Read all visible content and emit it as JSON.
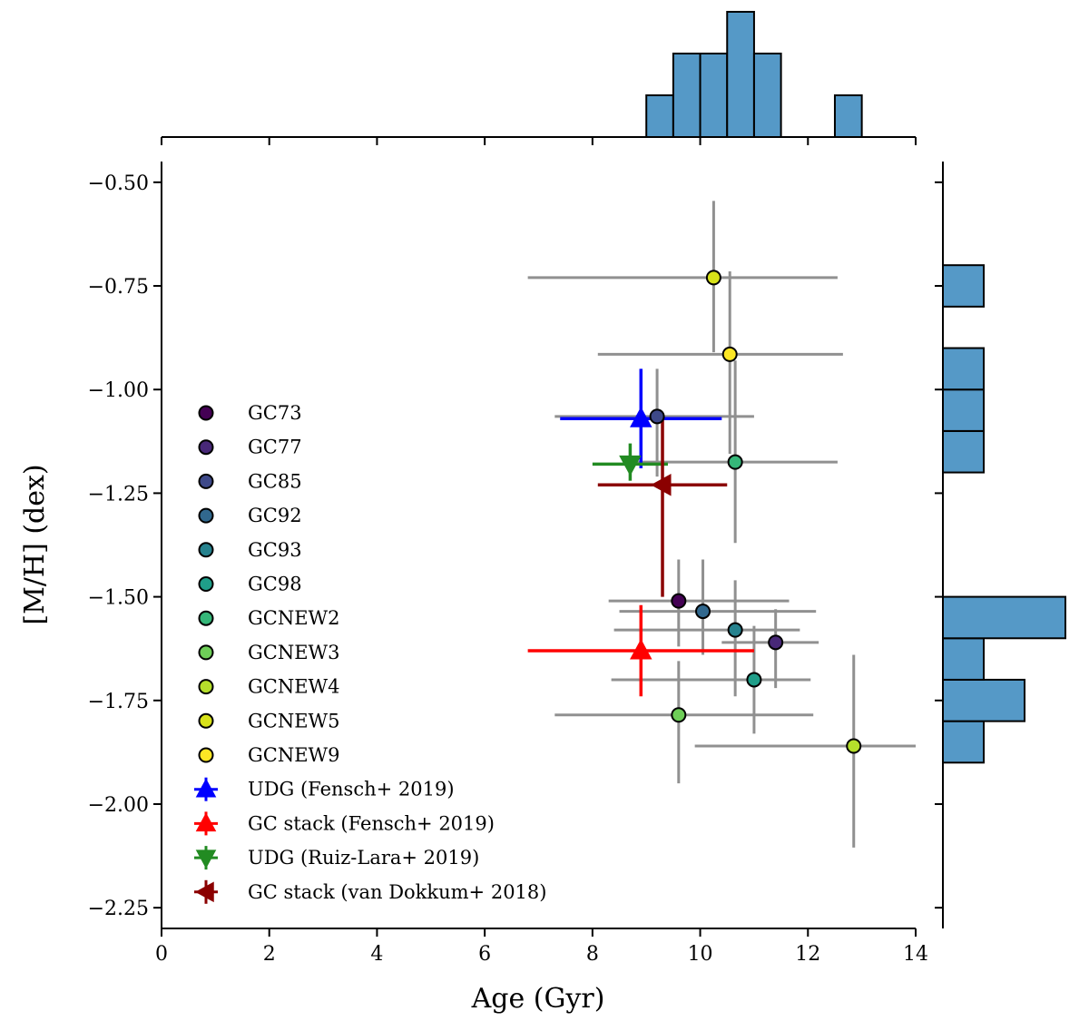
{
  "chart_data": {
    "type": "scatter",
    "xlabel": "Age (Gyr)",
    "ylabel": "[M/H] (dex)",
    "xlim": [
      0,
      14
    ],
    "ylim": [
      -2.3,
      -0.45
    ],
    "xticks": [
      0,
      2,
      4,
      6,
      8,
      10,
      12,
      14
    ],
    "xtick_labels": [
      "0",
      "2",
      "4",
      "6",
      "8",
      "10",
      "12",
      "14"
    ],
    "yticks": [
      -0.5,
      -0.75,
      -1.0,
      -1.25,
      -1.5,
      -1.75,
      -2.0,
      -2.25
    ],
    "ytick_labels": [
      "−0.50",
      "−0.75",
      "−1.00",
      "−1.25",
      "−1.50",
      "−1.75",
      "−2.00",
      "−2.25"
    ],
    "legend_position": "lower-left",
    "errorbar_color": "#909090",
    "gc_points": [
      {
        "name": "GC73",
        "color": "#440154",
        "age": 9.6,
        "age_lo": 8.3,
        "age_hi": 11.65,
        "mh": -1.51,
        "mh_lo": -1.62,
        "mh_hi": -1.41
      },
      {
        "name": "GC77",
        "color": "#482878",
        "age": 11.4,
        "age_lo": 10.4,
        "age_hi": 12.2,
        "mh": -1.61,
        "mh_lo": -1.72,
        "mh_hi": -1.53
      },
      {
        "name": "GC85",
        "color": "#3e4989",
        "age": 9.2,
        "age_lo": 7.3,
        "age_hi": 11.0,
        "mh": -1.065,
        "mh_lo": -1.21,
        "mh_hi": -0.95
      },
      {
        "name": "GC92",
        "color": "#31688e",
        "age": 10.05,
        "age_lo": 8.5,
        "age_hi": 12.15,
        "mh": -1.535,
        "mh_lo": -1.64,
        "mh_hi": -1.41
      },
      {
        "name": "GC93",
        "color": "#26828e",
        "age": 10.65,
        "age_lo": 8.4,
        "age_hi": 11.85,
        "mh": -1.58,
        "mh_lo": -1.74,
        "mh_hi": -1.46
      },
      {
        "name": "GC98",
        "color": "#1f9e89",
        "age": 11.0,
        "age_lo": 8.35,
        "age_hi": 12.05,
        "mh": -1.7,
        "mh_lo": -1.83,
        "mh_hi": -1.57
      },
      {
        "name": "GCNEW2",
        "color": "#35b779",
        "age": 10.65,
        "age_lo": 8.75,
        "age_hi": 12.55,
        "mh": -1.175,
        "mh_lo": -1.37,
        "mh_hi": -0.93
      },
      {
        "name": "GCNEW3",
        "color": "#6ece58",
        "age": 9.6,
        "age_lo": 7.3,
        "age_hi": 12.1,
        "mh": -1.785,
        "mh_lo": -1.95,
        "mh_hi": -1.655
      },
      {
        "name": "GCNEW4",
        "color": "#b5de2b",
        "age": 12.85,
        "age_lo": 9.9,
        "age_hi": 14.0,
        "mh": -1.86,
        "mh_lo": -2.105,
        "mh_hi": -1.64
      },
      {
        "name": "GCNEW5",
        "color": "#d8e219",
        "age": 10.25,
        "age_lo": 6.8,
        "age_hi": 12.55,
        "mh": -0.73,
        "mh_lo": -0.91,
        "mh_hi": -0.545
      },
      {
        "name": "GCNEW9",
        "color": "#fde725",
        "age": 10.55,
        "age_lo": 8.1,
        "age_hi": 12.65,
        "mh": -0.915,
        "mh_lo": -1.155,
        "mh_hi": -0.715
      }
    ],
    "reference_points": [
      {
        "name": "UDG (Fensch+ 2019)",
        "color": "#0000ff",
        "marker": "triangle-up",
        "age": 8.9,
        "age_lo": 7.4,
        "age_hi": 10.4,
        "mh": -1.07,
        "mh_lo": -1.19,
        "mh_hi": -0.95
      },
      {
        "name": "GC stack (Fensch+ 2019)",
        "color": "#ff0000",
        "marker": "triangle-up",
        "age": 8.9,
        "age_lo": 6.8,
        "age_hi": 11.0,
        "mh": -1.63,
        "mh_lo": -1.74,
        "mh_hi": -1.52
      },
      {
        "name": "UDG (Ruiz-Lara+ 2019)",
        "color": "#228b22",
        "marker": "triangle-down",
        "age": 8.7,
        "age_lo": 8.0,
        "age_hi": 9.4,
        "mh": -1.18,
        "mh_lo": -1.22,
        "mh_hi": -1.13
      },
      {
        "name": "GC stack (van Dokkum+ 2018)",
        "color": "#8b0000",
        "marker": "triangle-left",
        "age": 9.3,
        "age_lo": 8.1,
        "age_hi": 10.5,
        "mh": -1.23,
        "mh_lo": -1.5,
        "mh_hi": -1.07
      }
    ],
    "top_histogram": {
      "bar_color": "#5599c7",
      "bin_edges": [
        9.0,
        9.5,
        10.0,
        10.5,
        11.0,
        11.5,
        12.0,
        12.5,
        13.0
      ],
      "counts": [
        1,
        2,
        2,
        3,
        2,
        0,
        0,
        1
      ],
      "x_axis_ticks": [
        0,
        2,
        4,
        6,
        8,
        10,
        12,
        14
      ]
    },
    "right_histogram": {
      "bar_color": "#5599c7",
      "bin_edges": [
        -1.9,
        -1.8,
        -1.7,
        -1.6,
        -1.5,
        -1.2,
        -1.1,
        -1.0,
        -0.9,
        -0.8,
        -0.7
      ],
      "counts": [
        1,
        2,
        1,
        3,
        0,
        1,
        1,
        1,
        0,
        1
      ],
      "y_axis_ticks": [
        -0.5,
        -0.75,
        -1.0,
        -1.25,
        -1.5,
        -1.75,
        -2.0,
        -2.25
      ]
    }
  }
}
